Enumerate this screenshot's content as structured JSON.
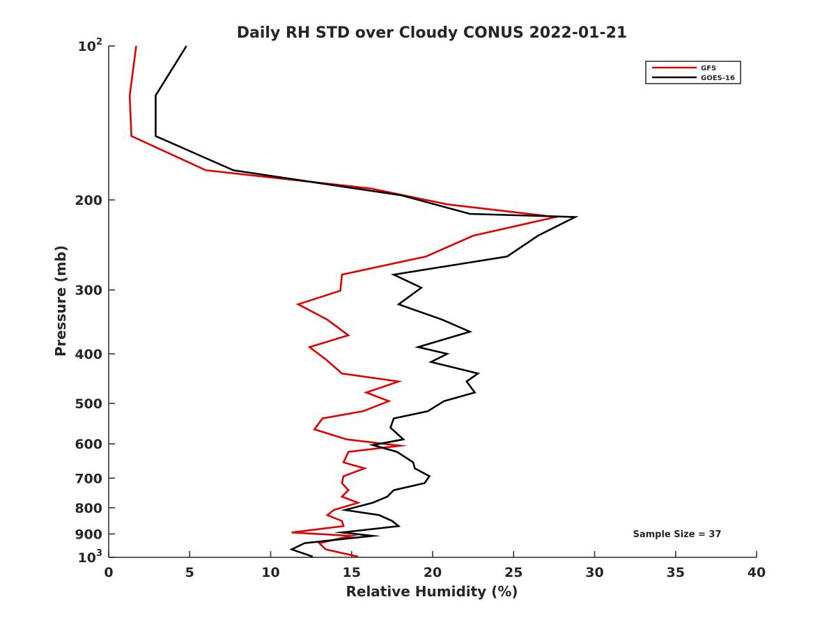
{
  "chart_data": {
    "type": "line",
    "title": "Daily RH STD over Cloudy CONUS 2022-01-21",
    "xlabel": "Relative Humidity (%)",
    "ylabel": "Pressure (mb)",
    "xlim": [
      0,
      40
    ],
    "ylim": [
      100,
      1000
    ],
    "yscale": "log",
    "y_reversed": true,
    "grid": false,
    "legend_position": "top-right",
    "x_ticks": [
      0,
      5,
      10,
      15,
      20,
      25,
      30,
      35,
      40
    ],
    "y_ticks": [
      {
        "value": 100,
        "base": "10",
        "exp": "2"
      },
      {
        "value": 200,
        "label": "200"
      },
      {
        "value": 300,
        "label": "300"
      },
      {
        "value": 400,
        "label": "400"
      },
      {
        "value": 500,
        "label": "500"
      },
      {
        "value": 600,
        "label": "600"
      },
      {
        "value": 700,
        "label": "700"
      },
      {
        "value": 800,
        "label": "800"
      },
      {
        "value": 900,
        "label": "900"
      },
      {
        "value": 1000,
        "base": "10",
        "exp": "3"
      }
    ],
    "annotation": "Sample Size = 37",
    "series": [
      {
        "name": "GFS",
        "color": "#e00000",
        "points": [
          [
            1.7,
            100
          ],
          [
            1.3,
            125
          ],
          [
            1.4,
            150
          ],
          [
            6.0,
            175
          ],
          [
            16.2,
            190
          ],
          [
            20.9,
            204
          ],
          [
            27.6,
            216
          ],
          [
            22.5,
            235
          ],
          [
            19.6,
            258
          ],
          [
            14.4,
            280
          ],
          [
            14.3,
            301
          ],
          [
            11.7,
            320
          ],
          [
            13.5,
            343
          ],
          [
            14.8,
            368
          ],
          [
            12.4,
            388
          ],
          [
            13.4,
            410
          ],
          [
            14.4,
            437
          ],
          [
            17.9,
            453
          ],
          [
            15.9,
            476
          ],
          [
            17.3,
            495
          ],
          [
            15.7,
            518
          ],
          [
            13.2,
            535
          ],
          [
            12.7,
            562
          ],
          [
            14.7,
            588
          ],
          [
            18.0,
            605
          ],
          [
            14.8,
            622
          ],
          [
            14.5,
            652
          ],
          [
            15.8,
            670
          ],
          [
            14.5,
            694
          ],
          [
            14.4,
            716
          ],
          [
            14.8,
            739
          ],
          [
            14.4,
            761
          ],
          [
            15.4,
            782
          ],
          [
            13.9,
            808
          ],
          [
            13.5,
            827
          ],
          [
            14.4,
            849
          ],
          [
            14.5,
            869
          ],
          [
            11.3,
            894
          ],
          [
            15.0,
            908
          ],
          [
            13.0,
            938
          ],
          [
            13.4,
            965
          ],
          [
            15.4,
            997
          ]
        ]
      },
      {
        "name": "GOES-16",
        "color": "#000000",
        "points": [
          [
            4.8,
            100
          ],
          [
            2.9,
            125
          ],
          [
            2.9,
            150
          ],
          [
            7.7,
            175
          ],
          [
            18.1,
            196
          ],
          [
            22.3,
            213
          ],
          [
            28.8,
            216
          ],
          [
            26.5,
            235
          ],
          [
            24.6,
            258
          ],
          [
            17.6,
            280
          ],
          [
            19.3,
            297
          ],
          [
            17.9,
            320
          ],
          [
            20.6,
            343
          ],
          [
            22.3,
            362
          ],
          [
            19.1,
            388
          ],
          [
            20.9,
            400
          ],
          [
            19.9,
            415
          ],
          [
            22.8,
            437
          ],
          [
            22.1,
            453
          ],
          [
            22.6,
            476
          ],
          [
            20.7,
            495
          ],
          [
            19.7,
            518
          ],
          [
            17.6,
            535
          ],
          [
            17.4,
            558
          ],
          [
            18.2,
            588
          ],
          [
            16.3,
            603
          ],
          [
            17.8,
            622
          ],
          [
            18.8,
            652
          ],
          [
            18.9,
            670
          ],
          [
            19.8,
            694
          ],
          [
            19.5,
            716
          ],
          [
            17.6,
            739
          ],
          [
            17.2,
            761
          ],
          [
            16.3,
            782
          ],
          [
            14.6,
            808
          ],
          [
            16.7,
            827
          ],
          [
            17.5,
            849
          ],
          [
            17.9,
            869
          ],
          [
            14.4,
            894
          ],
          [
            16.3,
            908
          ],
          [
            12.1,
            938
          ],
          [
            11.3,
            965
          ],
          [
            12.6,
            997
          ]
        ]
      }
    ]
  }
}
